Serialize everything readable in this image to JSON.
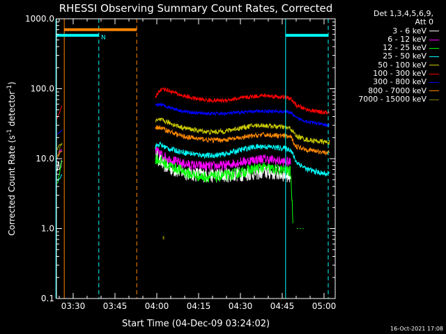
{
  "chart_data": {
    "type": "line",
    "title": "RHESSI Observing Summary Count Rates, Corrected",
    "xlabel": "Start Time (04-Dec-09 03:24:02)",
    "ylabel": "Corrected Count Rate (s-1 detector-1)",
    "ylabel_parts": {
      "main": "Corrected Count Rate (s",
      "sup1": "-1",
      "mid": " detector",
      "sup2": "-1",
      "end": ")"
    },
    "y_scale": "log",
    "ylim": [
      0.1,
      1000
    ],
    "xlim_minutes_after_0324": [
      0,
      100
    ],
    "x_ticks": [
      {
        "label": "03:30",
        "min": 6
      },
      {
        "label": "03:45",
        "min": 21
      },
      {
        "label": "04:00",
        "min": 36
      },
      {
        "label": "04:15",
        "min": 51
      },
      {
        "label": "04:30",
        "min": 66
      },
      {
        "label": "04:45",
        "min": 81
      },
      {
        "label": "05:00",
        "min": 96
      }
    ],
    "y_ticks": [
      {
        "label": "0.1",
        "v": 0.1
      },
      {
        "label": "1.0",
        "v": 1
      },
      {
        "label": "10.0",
        "v": 10
      },
      {
        "label": "100.0",
        "v": 100
      },
      {
        "label": "1000.0",
        "v": 1000
      }
    ],
    "legend_header": [
      "Det 1,3,4,5,6,9,",
      "Att 0"
    ],
    "series": [
      {
        "name": "3 - 6 keV",
        "color": "#ffffff",
        "pre": [
          [
            0.3,
            7.5
          ],
          [
            1.5,
            8.5
          ],
          [
            2.2,
            8.8
          ]
        ],
        "main": [
          [
            35.5,
            12
          ],
          [
            36.5,
            10
          ],
          [
            38,
            8.5
          ],
          [
            40,
            7.5
          ],
          [
            45,
            6.5
          ],
          [
            50,
            6
          ],
          [
            55,
            5.8
          ],
          [
            60,
            5.8
          ],
          [
            65,
            6
          ],
          [
            70,
            6.2
          ],
          [
            74,
            6.5
          ],
          [
            78,
            6.3
          ],
          [
            81,
            6
          ],
          [
            84,
            5.8
          ]
        ]
      },
      {
        "name": "6 - 12 keV",
        "color": "#ff00ff",
        "pre": [
          [
            0.3,
            11
          ],
          [
            1.5,
            12.5
          ],
          [
            2.2,
            13
          ]
        ],
        "main": [
          [
            35.5,
            13
          ],
          [
            37,
            12
          ],
          [
            40,
            10
          ],
          [
            45,
            8.5
          ],
          [
            50,
            8
          ],
          [
            55,
            7.8
          ],
          [
            60,
            8
          ],
          [
            65,
            8.8
          ],
          [
            70,
            9.5
          ],
          [
            74,
            10
          ],
          [
            78,
            9.5
          ],
          [
            82,
            9
          ],
          [
            84,
            8.8
          ]
        ]
      },
      {
        "name": "12 - 25 keV",
        "color": "#00ff00",
        "pre": [
          [
            0.3,
            4.5
          ],
          [
            1.5,
            8
          ],
          [
            2.2,
            9.5
          ]
        ],
        "main": [
          [
            35.5,
            10
          ],
          [
            37,
            9.5
          ],
          [
            40,
            8
          ],
          [
            44,
            7
          ],
          [
            48,
            6
          ],
          [
            52,
            5.5
          ],
          [
            58,
            5.5
          ],
          [
            64,
            6
          ],
          [
            70,
            7
          ],
          [
            74,
            7.5
          ],
          [
            78,
            7
          ],
          [
            82,
            6.8
          ],
          [
            84,
            6.5
          ],
          [
            85,
            1
          ]
        ]
      },
      {
        "name": "25 - 50 keV",
        "color": "#00ffff",
        "pre": [
          [
            0.3,
            5
          ],
          [
            1.5,
            5.5
          ],
          [
            2.2,
            6
          ]
        ],
        "main": [
          [
            35.5,
            15
          ],
          [
            37,
            16
          ],
          [
            40,
            14
          ],
          [
            45,
            12.5
          ],
          [
            50,
            11.5
          ],
          [
            55,
            11
          ],
          [
            60,
            11.5
          ],
          [
            65,
            13
          ],
          [
            70,
            14.5
          ],
          [
            74,
            15
          ],
          [
            78,
            14.5
          ],
          [
            82,
            14
          ],
          [
            84,
            13.5
          ],
          [
            86,
            9
          ],
          [
            90,
            7
          ],
          [
            95,
            6.2
          ],
          [
            98,
            6
          ]
        ]
      },
      {
        "name": "50 - 100 keV",
        "color": "#cccc00",
        "pre": [
          [
            0.3,
            14
          ],
          [
            1.5,
            16
          ],
          [
            2.2,
            17
          ]
        ],
        "main": [
          [
            35.5,
            34
          ],
          [
            37,
            36
          ],
          [
            40,
            33
          ],
          [
            45,
            28
          ],
          [
            50,
            25.5
          ],
          [
            55,
            24
          ],
          [
            60,
            24.5
          ],
          [
            65,
            27
          ],
          [
            70,
            29.5
          ],
          [
            74,
            30
          ],
          [
            78,
            29
          ],
          [
            82,
            28
          ],
          [
            84,
            27
          ],
          [
            86,
            21
          ],
          [
            90,
            18.5
          ],
          [
            95,
            17.5
          ],
          [
            98,
            17
          ]
        ]
      },
      {
        "name": "100 - 300 keV",
        "color": "#ff0000",
        "pre": [
          [
            0.3,
            38
          ],
          [
            1.2,
            45
          ],
          [
            2.2,
            60
          ]
        ],
        "main": [
          [
            35.5,
            75
          ],
          [
            37,
            95
          ],
          [
            38.5,
            100
          ],
          [
            40,
            95
          ],
          [
            45,
            80
          ],
          [
            50,
            72
          ],
          [
            55,
            68
          ],
          [
            60,
            68
          ],
          [
            65,
            72
          ],
          [
            70,
            77
          ],
          [
            74,
            80
          ],
          [
            78,
            78
          ],
          [
            82,
            75
          ],
          [
            84,
            72
          ],
          [
            86,
            58
          ],
          [
            90,
            50
          ],
          [
            95,
            46
          ],
          [
            98,
            45
          ]
        ]
      },
      {
        "name": "300 - 800 keV",
        "color": "#0000ff",
        "pre": [
          [
            0.3,
            22
          ],
          [
            1.5,
            24
          ],
          [
            2.2,
            25
          ]
        ],
        "main": [
          [
            35.5,
            57
          ],
          [
            37,
            60
          ],
          [
            40,
            55
          ],
          [
            45,
            48
          ],
          [
            50,
            45
          ],
          [
            55,
            44
          ],
          [
            60,
            44
          ],
          [
            65,
            45.5
          ],
          [
            70,
            47
          ],
          [
            74,
            48
          ],
          [
            78,
            47.5
          ],
          [
            82,
            47
          ],
          [
            84,
            46
          ],
          [
            86,
            38
          ],
          [
            90,
            34
          ],
          [
            95,
            31
          ],
          [
            98,
            30
          ]
        ]
      },
      {
        "name": "800 - 7000 keV",
        "color": "#ff8800",
        "pre": [
          [
            0.3,
            11
          ],
          [
            1.5,
            12
          ],
          [
            2.2,
            12.5
          ]
        ],
        "main": [
          [
            35.5,
            28
          ],
          [
            37,
            28
          ],
          [
            40,
            25
          ],
          [
            45,
            21
          ],
          [
            50,
            19.5
          ],
          [
            55,
            18.5
          ],
          [
            60,
            18.5
          ],
          [
            65,
            19.5
          ],
          [
            70,
            21
          ],
          [
            74,
            22
          ],
          [
            78,
            21.5
          ],
          [
            82,
            21
          ],
          [
            84,
            20.5
          ],
          [
            86,
            15
          ],
          [
            90,
            13.5
          ],
          [
            95,
            12.5
          ],
          [
            98,
            12
          ]
        ]
      },
      {
        "name": "7000 - 15000 keV",
        "color": "#808000",
        "pre": [
          [
            0.3,
            10
          ],
          [
            1.5,
            16
          ],
          [
            2.2,
            17
          ]
        ],
        "main": [
          [
            38.4,
            0.7
          ],
          [
            38.6,
            0.78
          ]
        ]
      }
    ],
    "annotations": {
      "top_bars": [
        {
          "color": "#00ffff",
          "x0": -0.2,
          "x1": 15.2,
          "y": 580
        },
        {
          "color": "#ff8800",
          "x0": 2.8,
          "x1": 28.8,
          "y": 700
        },
        {
          "color": "#00ffff",
          "x0": 82.2,
          "x1": 97.5,
          "y": 580
        }
      ],
      "vlines": [
        {
          "color": "#00ffff",
          "x": -0.2,
          "dash": false
        },
        {
          "color": "#ff8800",
          "x": 2.8,
          "dash": false
        },
        {
          "color": "#00ffff",
          "x": 15.2,
          "dash": true
        },
        {
          "color": "#ff8800",
          "x": 28.8,
          "dash": true
        },
        {
          "color": "#00ffff",
          "x": 82.2,
          "dash": false
        },
        {
          "color": "#00ffff",
          "x": 97.5,
          "dash": true
        }
      ],
      "n_label": {
        "text": "N",
        "x": 16,
        "y": 560,
        "color": "#00ffff"
      }
    }
  },
  "footer": {
    "timestamp": "16-Oct-2021 17:08"
  }
}
